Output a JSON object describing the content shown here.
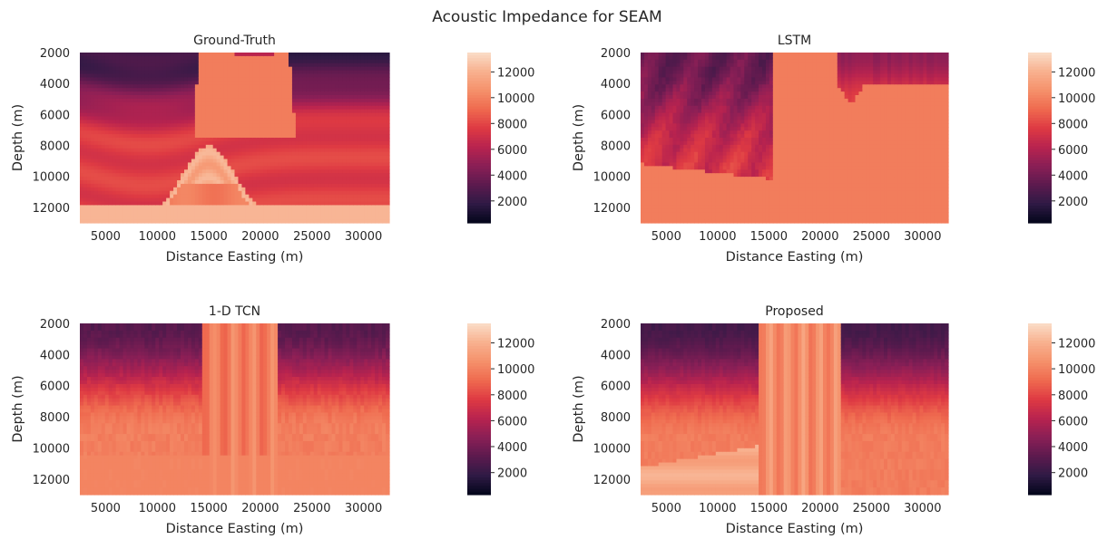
{
  "figure": {
    "suptitle": "Acoustic Impedance for SEAM"
  },
  "colors": {
    "colormap": "rocket",
    "stops": [
      "#03051a",
      "#2f1a45",
      "#5c1a4e",
      "#8a1f56",
      "#b8234f",
      "#de3a43",
      "#ef6a4f",
      "#f5916b",
      "#f8b18f",
      "#faddc8"
    ]
  },
  "chart_data": [
    {
      "type": "heatmap",
      "title": "Ground-Truth",
      "xlabel": "Distance Easting (m)",
      "ylabel": "Depth (m)",
      "xlim": [
        2500,
        32500
      ],
      "ylim": [
        13000,
        2000
      ],
      "xticks": [
        5000,
        10000,
        15000,
        20000,
        25000,
        30000
      ],
      "yticks": [
        2000,
        4000,
        6000,
        8000,
        10000,
        12000
      ],
      "colorbar": {
        "ticks": [
          2000,
          4000,
          6000,
          8000,
          10000,
          12000
        ],
        "range": [
          300,
          13500
        ]
      },
      "model": "ground"
    },
    {
      "type": "heatmap",
      "title": "LSTM",
      "xlabel": "Distance Easting (m)",
      "ylabel": "Depth (m)",
      "xlim": [
        2500,
        32500
      ],
      "ylim": [
        13000,
        2000
      ],
      "xticks": [
        5000,
        10000,
        15000,
        20000,
        25000,
        30000
      ],
      "yticks": [
        2000,
        4000,
        6000,
        8000,
        10000,
        12000
      ],
      "colorbar": {
        "ticks": [
          2000,
          4000,
          6000,
          8000,
          10000,
          12000
        ],
        "range": [
          300,
          13500
        ]
      },
      "model": "lstm"
    },
    {
      "type": "heatmap",
      "title": "1-D TCN",
      "xlabel": "Distance Easting (m)",
      "ylabel": "Depth (m)",
      "xlim": [
        2500,
        32500
      ],
      "ylim": [
        13000,
        2000
      ],
      "xticks": [
        5000,
        10000,
        15000,
        20000,
        25000,
        30000
      ],
      "yticks": [
        2000,
        4000,
        6000,
        8000,
        10000,
        12000
      ],
      "colorbar": {
        "ticks": [
          2000,
          4000,
          6000,
          8000,
          10000,
          12000
        ],
        "range": [
          300,
          13500
        ]
      },
      "model": "tcn"
    },
    {
      "type": "heatmap",
      "title": "Proposed",
      "xlabel": "Distance Easting (m)",
      "ylabel": "Depth (m)",
      "xlim": [
        2500,
        32500
      ],
      "ylim": [
        13000,
        2000
      ],
      "xticks": [
        5000,
        10000,
        15000,
        20000,
        25000,
        30000
      ],
      "yticks": [
        2000,
        4000,
        6000,
        8000,
        10000,
        12000
      ],
      "colorbar": {
        "ticks": [
          2000,
          4000,
          6000,
          8000,
          10000,
          12000
        ],
        "range": [
          300,
          13500
        ]
      },
      "model": "proposed"
    }
  ]
}
